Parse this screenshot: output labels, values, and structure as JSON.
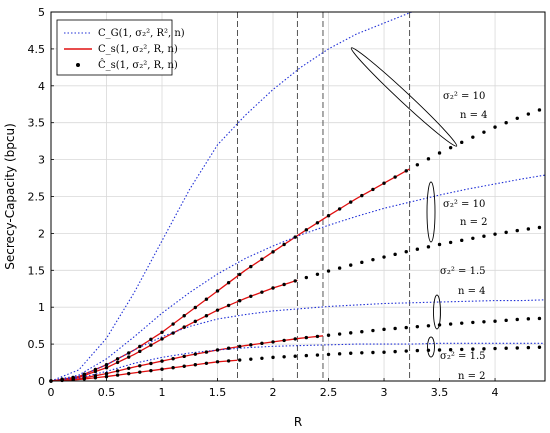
{
  "chart_data": {
    "type": "line",
    "xlabel": "R",
    "ylabel": "Secrecy-Capacity (bpcu)",
    "xlim": [
      0,
      4.45
    ],
    "ylim": [
      0,
      5
    ],
    "x_ticks": [
      "0",
      "0.5",
      "1",
      "1.5",
      "2",
      "2.5",
      "3",
      "3.5",
      "4"
    ],
    "y_ticks": [
      "0",
      "0.5",
      "1",
      "1.5",
      "2",
      "2.5",
      "3",
      "3.5",
      "4",
      "4.5",
      "5"
    ],
    "grid": true,
    "vertical_dashed_lines_x": [
      1.68,
      2.22,
      2.45,
      3.23
    ],
    "legend": {
      "position": "top-left",
      "entries": [
        {
          "label": "C_G(1, σ₂², R², n)",
          "style": "dotted-blue"
        },
        {
          "label": "C_s(1, σ₂², R, n)",
          "style": "solid-red"
        },
        {
          "label": "Ĉ_s(1, σ₂², R, n)",
          "style": "black-dots"
        }
      ]
    },
    "series": [
      {
        "group": "s2=10,n=4",
        "kind": "gaussian_bound",
        "x": [
          0,
          0.25,
          0.5,
          0.75,
          1.0,
          1.25,
          1.5,
          1.75,
          2.0,
          2.25,
          2.5,
          2.75,
          3.0,
          3.25
        ],
        "y": [
          0,
          0.15,
          0.58,
          1.2,
          1.9,
          2.6,
          3.2,
          3.6,
          3.95,
          4.25,
          4.5,
          4.7,
          4.85,
          5.0
        ]
      },
      {
        "group": "s2=10,n=4",
        "kind": "exact",
        "x_max": 3.23,
        "dot_x_end": 4.45,
        "y_func_points": [
          [
            0,
            0
          ],
          [
            0.25,
            0.06
          ],
          [
            0.5,
            0.22
          ],
          [
            0.75,
            0.42
          ],
          [
            1.0,
            0.66
          ],
          [
            1.25,
            0.94
          ],
          [
            1.5,
            1.22
          ],
          [
            1.75,
            1.5
          ],
          [
            2.0,
            1.75
          ],
          [
            2.25,
            2.0
          ],
          [
            2.5,
            2.24
          ],
          [
            2.75,
            2.47
          ],
          [
            3.0,
            2.68
          ],
          [
            3.25,
            2.89
          ],
          [
            3.5,
            3.09
          ],
          [
            3.75,
            3.27
          ],
          [
            4.0,
            3.44
          ],
          [
            4.25,
            3.59
          ],
          [
            4.45,
            3.7
          ]
        ]
      },
      {
        "group": "s2=10,n=2",
        "kind": "gaussian_bound",
        "x": [
          0,
          0.25,
          0.5,
          0.75,
          1.0,
          1.25,
          1.5,
          1.75,
          2.0,
          2.25,
          2.5,
          2.75,
          3.0,
          3.25,
          3.5,
          3.75,
          4.0,
          4.25,
          4.45
        ],
        "y": [
          0,
          0.08,
          0.3,
          0.6,
          0.92,
          1.2,
          1.45,
          1.66,
          1.83,
          1.98,
          2.11,
          2.23,
          2.34,
          2.43,
          2.52,
          2.6,
          2.67,
          2.74,
          2.79
        ]
      },
      {
        "group": "s2=10,n=2",
        "kind": "exact",
        "x_max": 2.22,
        "dot_x_end": 4.45,
        "y_func_points": [
          [
            0,
            0
          ],
          [
            0.25,
            0.05
          ],
          [
            0.5,
            0.18
          ],
          [
            0.75,
            0.36
          ],
          [
            1.0,
            0.57
          ],
          [
            1.25,
            0.77
          ],
          [
            1.5,
            0.96
          ],
          [
            1.75,
            1.12
          ],
          [
            2.0,
            1.26
          ],
          [
            2.25,
            1.38
          ],
          [
            2.5,
            1.49
          ],
          [
            2.75,
            1.59
          ],
          [
            3.0,
            1.68
          ],
          [
            3.25,
            1.77
          ],
          [
            3.5,
            1.85
          ],
          [
            3.75,
            1.92
          ],
          [
            4.0,
            1.99
          ],
          [
            4.25,
            2.05
          ],
          [
            4.45,
            2.09
          ]
        ]
      },
      {
        "group": "s2=1.5,n=4",
        "kind": "gaussian_bound",
        "x": [
          0,
          0.25,
          0.5,
          0.75,
          1.0,
          1.25,
          1.5,
          1.75,
          2.0,
          2.25,
          2.5,
          2.75,
          3.0,
          3.25,
          3.5,
          3.75,
          4.0,
          4.25,
          4.45
        ],
        "y": [
          0,
          0.06,
          0.22,
          0.42,
          0.6,
          0.74,
          0.84,
          0.9,
          0.95,
          0.98,
          1.01,
          1.03,
          1.05,
          1.06,
          1.07,
          1.08,
          1.09,
          1.09,
          1.1
        ]
      },
      {
        "group": "s2=1.5,n=4",
        "kind": "exact",
        "x_max": 2.45,
        "dot_x_end": 4.45,
        "y_func_points": [
          [
            0,
            0
          ],
          [
            0.25,
            0.03
          ],
          [
            0.5,
            0.1
          ],
          [
            0.75,
            0.19
          ],
          [
            1.0,
            0.27
          ],
          [
            1.25,
            0.35
          ],
          [
            1.5,
            0.42
          ],
          [
            1.75,
            0.48
          ],
          [
            2.0,
            0.53
          ],
          [
            2.25,
            0.58
          ],
          [
            2.5,
            0.62
          ],
          [
            2.75,
            0.66
          ],
          [
            3.0,
            0.7
          ],
          [
            3.25,
            0.73
          ],
          [
            3.5,
            0.76
          ],
          [
            3.75,
            0.79
          ],
          [
            4.0,
            0.81
          ],
          [
            4.25,
            0.84
          ],
          [
            4.45,
            0.85
          ]
        ]
      },
      {
        "group": "s2=1.5,n=2",
        "kind": "gaussian_bound",
        "x": [
          0,
          0.25,
          0.5,
          0.75,
          1.0,
          1.25,
          1.5,
          1.75,
          2.0,
          2.25,
          2.5,
          2.75,
          3.0,
          3.25,
          3.5,
          3.75,
          4.0,
          4.25,
          4.45
        ],
        "y": [
          0,
          0.04,
          0.13,
          0.24,
          0.32,
          0.38,
          0.42,
          0.45,
          0.47,
          0.48,
          0.49,
          0.5,
          0.5,
          0.5,
          0.51,
          0.51,
          0.51,
          0.51,
          0.51
        ]
      },
      {
        "group": "s2=1.5,n=2",
        "kind": "exact",
        "x_max": 1.68,
        "dot_x_end": 4.45,
        "y_func_points": [
          [
            0,
            0
          ],
          [
            0.25,
            0.02
          ],
          [
            0.5,
            0.06
          ],
          [
            0.75,
            0.11
          ],
          [
            1.0,
            0.16
          ],
          [
            1.25,
            0.21
          ],
          [
            1.5,
            0.26
          ],
          [
            1.75,
            0.29
          ],
          [
            2.0,
            0.32
          ],
          [
            2.25,
            0.34
          ],
          [
            2.5,
            0.36
          ],
          [
            2.75,
            0.38
          ],
          [
            3.0,
            0.39
          ],
          [
            3.25,
            0.41
          ],
          [
            3.5,
            0.42
          ],
          [
            3.75,
            0.43
          ],
          [
            4.0,
            0.44
          ],
          [
            4.25,
            0.45
          ],
          [
            4.45,
            0.46
          ]
        ]
      }
    ],
    "annotations": [
      {
        "id": "a1",
        "lines": [
          "σ₂² = 10",
          "n = 4"
        ]
      },
      {
        "id": "a2",
        "lines": [
          "σ₂² = 10",
          "n = 2"
        ]
      },
      {
        "id": "a3",
        "lines": [
          "σ₂² = 1.5",
          "n = 4"
        ]
      },
      {
        "id": "a4",
        "lines": [
          "σ₂² = 1.5",
          "n = 2"
        ]
      }
    ],
    "colors": {
      "gaussian": "#1f2fd6",
      "exact": "#e01010",
      "dots": "#000000",
      "grid": "#d9d9d9",
      "dashed": "#555555"
    }
  }
}
